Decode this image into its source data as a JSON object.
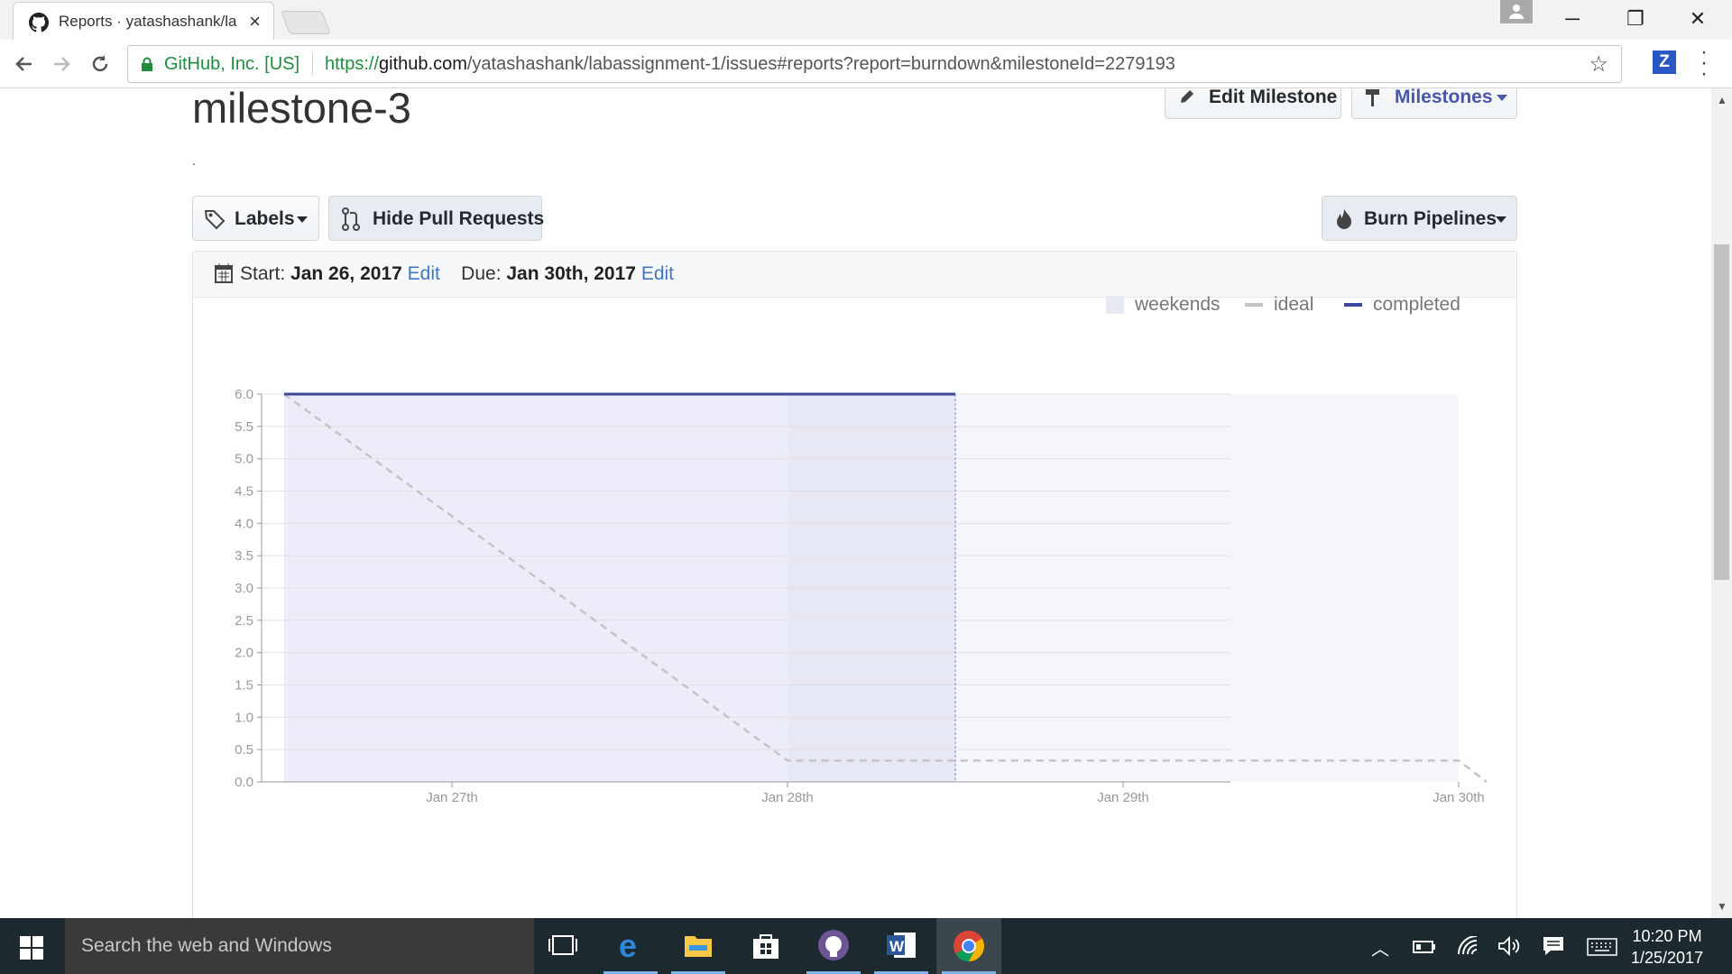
{
  "browser": {
    "tab_title": "Reports · yatashashank/la",
    "secure_label": "GitHub, Inc. [US]",
    "url_scheme": "https://",
    "url_host": "github.com",
    "url_path": "/yatashashank/labassignment-1/issues#reports?report=burndown&milestoneId=2279193",
    "extension_label": "Z"
  },
  "page": {
    "milestone_title": "milestone-3",
    "description": ".",
    "buttons": {
      "edit_milestone": "Edit Milestone",
      "milestones": "Milestones",
      "labels": "Labels",
      "hide_pull_requests": "Hide Pull Requests",
      "burn_pipelines": "Burn Pipelines"
    },
    "dates": {
      "start_label": "Start:",
      "start_value": "Jan 26, 2017",
      "start_edit": "Edit",
      "due_label": "Due:",
      "due_value": "Jan 30th, 2017",
      "due_edit": "Edit"
    }
  },
  "chart_data": {
    "type": "line",
    "title": "",
    "xlabel": "",
    "ylabel": "",
    "x_ticks": [
      "Jan 27th",
      "Jan 28th",
      "Jan 29th",
      "Jan 30th"
    ],
    "ylim": [
      0,
      6
    ],
    "y_ticks": [
      "0.0",
      "0.5",
      "1.0",
      "1.5",
      "2.0",
      "2.5",
      "3.0",
      "3.5",
      "4.0",
      "4.5",
      "5.0",
      "5.5",
      "6.0"
    ],
    "grid": true,
    "legend": {
      "placement": "top-right",
      "entries": [
        "weekends",
        "ideal",
        "completed"
      ]
    },
    "colors": {
      "completed": "#3c4a9e",
      "ideal": "#c4c4c8",
      "weekends": "#e6e8f4",
      "area": "#ecedf8",
      "current": "#8080e0"
    },
    "series": [
      {
        "name": "ideal",
        "style": "dashed",
        "points": [
          {
            "x": "Jan 26th 12:00",
            "y": 6.0
          },
          {
            "x": "Jan 28th 00:00",
            "y": 0.33
          },
          {
            "x": "Jan 30th 00:00",
            "y": 0.33
          },
          {
            "x": "Jan 30th 02:00",
            "y": 0.0
          }
        ]
      },
      {
        "name": "completed",
        "style": "solid",
        "points": [
          {
            "x": "Jan 26th 12:00",
            "y": 6.0
          },
          {
            "x": "Jan 28th 12:00",
            "y": 6.0
          }
        ]
      }
    ],
    "weekend_band": {
      "from": "Jan 28th",
      "to": "Jan 28th 12:00"
    },
    "remaining_band": {
      "from": "Jan 28th 12:00",
      "to": "Jan 30th"
    }
  },
  "taskbar": {
    "search_placeholder": "Search the web and Windows",
    "time": "10:20 PM",
    "date": "1/25/2017"
  }
}
